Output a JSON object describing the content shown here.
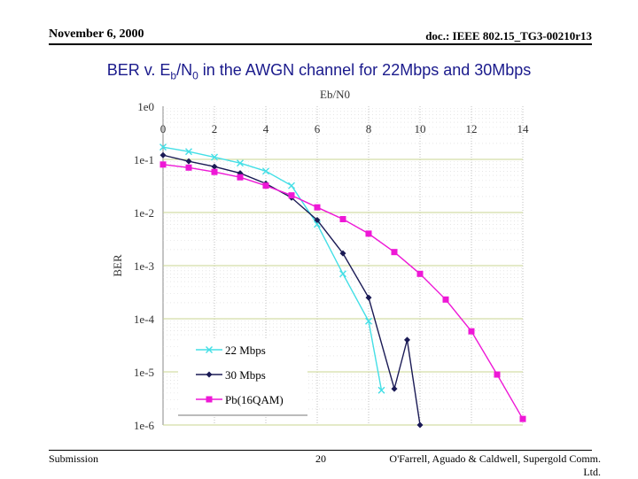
{
  "header": {
    "date": "November 6, 2000",
    "doc": "doc.: IEEE 802.15_TG3-00210r13"
  },
  "slide_title": {
    "prefix": "BER v. E",
    "sub1": "b",
    "mid": "/N",
    "sub2": "0",
    "suffix": " in the AWGN channel for 22Mbps and 30Mbps"
  },
  "footer": {
    "left": "Submission",
    "page": "20",
    "authors": "O'Farrell, Aguado & Caldwell, Supergold Comm. Ltd."
  },
  "colors": {
    "s22": "#44dfe6",
    "s30": "#1a1a55",
    "s16": "#ee18d6",
    "grid": "#c8d690"
  },
  "chart_data": {
    "type": "line",
    "title": "",
    "xlabel": "Eb/N0",
    "ylabel": "BER",
    "xlim": [
      0,
      14
    ],
    "ylim_log10": [
      -6,
      0
    ],
    "x_ticks": [
      0,
      2,
      4,
      6,
      8,
      10,
      12,
      14
    ],
    "y_ticks": [
      "1e0",
      "1e-1",
      "1e-2",
      "1e-3",
      "1e-4",
      "1e-5",
      "1e-6"
    ],
    "series": [
      {
        "name": "22 Mbps",
        "marker": "x",
        "x": [
          0,
          1,
          2,
          3,
          4,
          5,
          6,
          7,
          8,
          8.5
        ],
        "y": [
          0.17,
          0.14,
          0.11,
          0.085,
          0.06,
          0.032,
          0.006,
          0.0007,
          9e-05,
          4.5e-06
        ]
      },
      {
        "name": "30 Mbps",
        "marker": "diamond",
        "x": [
          0,
          1,
          2,
          3,
          4,
          5,
          6,
          7,
          8,
          9,
          9.5,
          10
        ],
        "y": [
          0.12,
          0.092,
          0.073,
          0.055,
          0.035,
          0.019,
          0.0072,
          0.0017,
          0.00025,
          4.8e-06,
          4e-05,
          1e-06
        ]
      },
      {
        "name": "Pb(16QAM)",
        "marker": "square",
        "x": [
          0,
          1,
          2,
          3,
          4,
          5,
          6,
          7,
          8,
          9,
          10,
          11,
          12,
          13,
          14
        ],
        "y": [
          0.08,
          0.07,
          0.058,
          0.046,
          0.032,
          0.021,
          0.0125,
          0.0075,
          0.004,
          0.0018,
          0.0007,
          0.00023,
          5.8e-05,
          8.9e-06,
          1.3e-06
        ]
      }
    ],
    "legend": [
      "22 Mbps",
      "30 Mbps",
      "Pb(16QAM)"
    ]
  }
}
